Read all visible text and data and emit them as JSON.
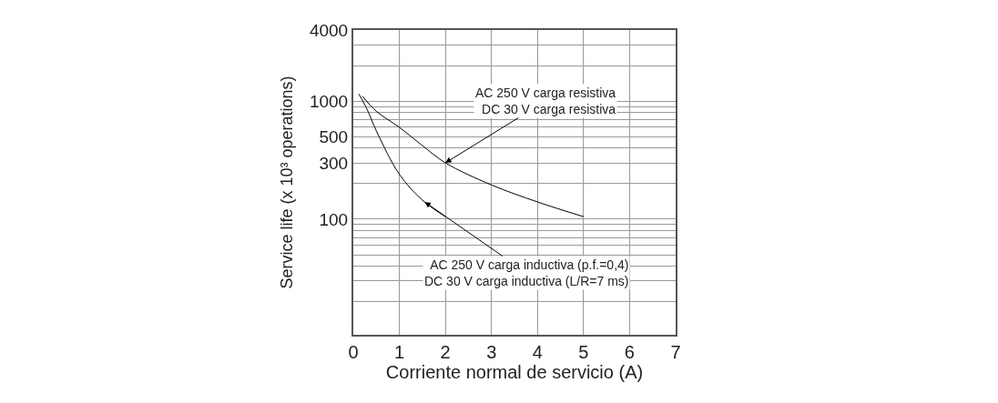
{
  "chart_data": {
    "type": "line",
    "xlabel": "Corriente normal de servicio (A)",
    "ylabel": "Service life (x 10³ operations)",
    "log": "y",
    "grid": true,
    "marker": "none",
    "line_style": "solid",
    "xlim": [
      0,
      7
    ],
    "xticks": [
      0,
      1,
      2,
      3,
      4,
      5,
      6,
      7
    ],
    "ylim": [
      10.5,
      4000
    ],
    "yticks": [
      4000,
      {
        "value": 3000,
        "label": null
      },
      {
        "value": 2000,
        "label": null
      },
      1000,
      {
        "value": 900,
        "label": null
      },
      {
        "value": 800,
        "label": null
      },
      {
        "value": 700,
        "label": null
      },
      {
        "value": 600,
        "label": null
      },
      500,
      {
        "value": 400,
        "label": null
      },
      300,
      {
        "value": 200,
        "label": null
      },
      100,
      {
        "value": 90,
        "label": null
      },
      {
        "value": 80,
        "label": null
      },
      {
        "value": 70,
        "label": null
      },
      {
        "value": 60,
        "label": null
      },
      {
        "value": 50,
        "label": null
      },
      {
        "value": 40,
        "label": null
      },
      {
        "value": 30,
        "label": null
      },
      {
        "value": 20,
        "label": null
      }
    ],
    "series": [
      {
        "color": "#000000",
        "x": [
          0.2,
          0.5,
          1,
          1.5,
          2,
          3,
          4,
          5
        ],
        "values": [
          1100,
          820,
          600,
          420,
          300,
          195,
          140,
          105
        ]
      },
      {
        "color": "#000000",
        "x": [
          0.12,
          0.3,
          0.5,
          1,
          1.5,
          2
        ],
        "values": [
          1150,
          850,
          560,
          240,
          145,
          105
        ]
      }
    ],
    "annotations": [
      {
        "text": "AC 250 V carga resistiva\nDC 30 V carga resistiva",
        "x": 2,
        "y": 300
      },
      {
        "text": "AC 250 V carga inductiva (p.f.=0,4)\nDC 30 V carga inductiva (L/R=7 ms)",
        "x": 1.55,
        "y": 140
      }
    ]
  }
}
